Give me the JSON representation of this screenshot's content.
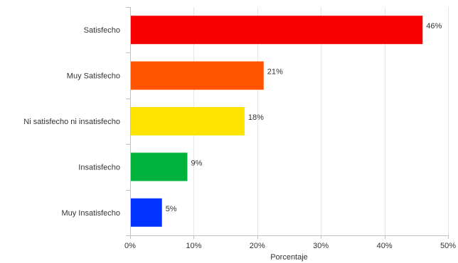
{
  "chart_data": {
    "type": "bar",
    "orientation": "horizontal",
    "categories": [
      "Satisfecho",
      "Muy Satisfecho",
      "Ni satisfecho ni insatisfecho",
      "Insatisfecho",
      "Muy Insatisfecho"
    ],
    "values": [
      46,
      21,
      18,
      9,
      5
    ],
    "value_labels": [
      "46%",
      "21%",
      "18%",
      "9%",
      "5%"
    ],
    "colors": [
      "#f90000",
      "#ff5400",
      "#ffe400",
      "#00b33c",
      "#0033ff"
    ],
    "xlabel": "Porcentaje",
    "ylabel": "",
    "xlim": [
      0,
      50
    ],
    "x_ticks": [
      0,
      10,
      20,
      30,
      40,
      50
    ],
    "x_tick_labels": [
      "0%",
      "10%",
      "20%",
      "30%",
      "40%",
      "50%"
    ],
    "grid": "vertical",
    "legend": "none"
  }
}
